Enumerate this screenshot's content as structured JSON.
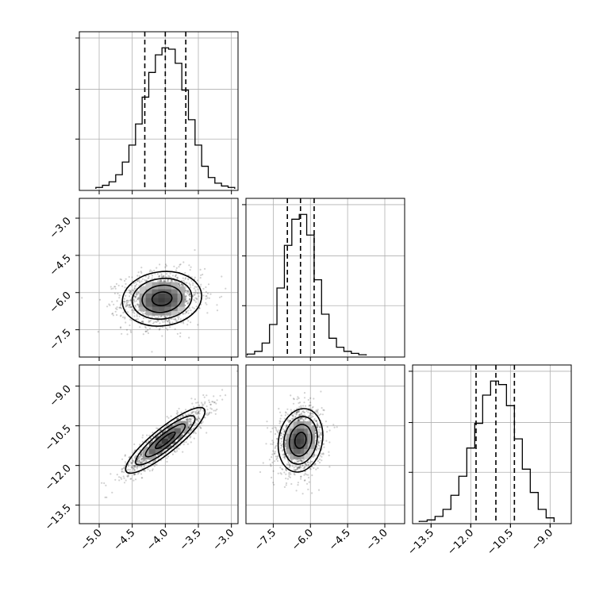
{
  "chart_data": {
    "type": "corner",
    "params": [
      {
        "range": [
          -5.3,
          -2.9
        ],
        "ticks": [
          -5.0,
          -4.5,
          -4.0,
          -3.5,
          -3.0
        ],
        "tick_labels": [
          "−5.0",
          "−4.5",
          "−4.0",
          "−3.5",
          "−3.0"
        ],
        "quantiles": [
          -4.31,
          -4.0,
          -3.69
        ],
        "hist": {
          "edges": [
            -5.05,
            -4.95,
            -4.85,
            -4.75,
            -4.65,
            -4.55,
            -4.45,
            -4.35,
            -4.25,
            -4.15,
            -4.05,
            -3.95,
            -3.85,
            -3.75,
            -3.65,
            -3.55,
            -3.45,
            -3.35,
            -3.25,
            -3.15,
            -3.05,
            -2.95
          ],
          "counts": [
            2,
            5,
            10,
            20,
            38,
            62,
            92,
            130,
            165,
            190,
            200,
            198,
            178,
            140,
            98,
            62,
            32,
            16,
            8,
            4,
            2
          ]
        }
      },
      {
        "range": [
          -8.6,
          -2.2
        ],
        "ticks": [
          -7.5,
          -6.0,
          -4.5,
          -3.0
        ],
        "tick_labels": [
          "−7.5",
          "−6.0",
          "−4.5",
          "−3.0"
        ],
        "quantiles": [
          -6.93,
          -6.4,
          -5.85
        ],
        "hist": {
          "edges": [
            -8.55,
            -8.25,
            -7.95,
            -7.65,
            -7.35,
            -7.05,
            -6.75,
            -6.45,
            -6.15,
            -5.85,
            -5.55,
            -5.25,
            -4.95,
            -4.65,
            -4.35,
            -4.05,
            -3.75
          ],
          "counts": [
            2,
            6,
            18,
            45,
            98,
            160,
            198,
            205,
            175,
            110,
            60,
            25,
            12,
            6,
            3,
            1
          ]
        }
      },
      {
        "range": [
          -14.2,
          -8.2
        ],
        "ticks": [
          -13.5,
          -12.0,
          -10.5,
          -9.0
        ],
        "tick_labels": [
          "−13.5",
          "−12.0",
          "−10.5",
          "−9.0"
        ],
        "quantiles": [
          -11.8,
          -11.05,
          -10.35
        ],
        "hist": {
          "edges": [
            -13.95,
            -13.65,
            -13.35,
            -13.05,
            -12.75,
            -12.45,
            -12.15,
            -11.85,
            -11.55,
            -11.25,
            -10.95,
            -10.65,
            -10.35,
            -10.05,
            -9.75,
            -9.45,
            -9.15,
            -8.85
          ],
          "counts": [
            1,
            3,
            8,
            18,
            38,
            65,
            105,
            140,
            180,
            200,
            195,
            165,
            118,
            75,
            42,
            18,
            6
          ]
        }
      }
    ],
    "pairs": [
      {
        "x": 0,
        "y": 1,
        "mean": [
          -4.05,
          -6.25
        ],
        "sd": [
          0.3,
          0.55
        ],
        "rho": 0.1
      },
      {
        "x": 0,
        "y": 2,
        "mean": [
          -4.0,
          -11.05
        ],
        "sd": [
          0.3,
          0.62
        ],
        "rho": 0.88
      },
      {
        "x": 1,
        "y": 2,
        "mean": [
          -6.4,
          -11.05
        ],
        "sd": [
          0.45,
          0.6
        ],
        "rho": 0.15
      }
    ],
    "grid": true,
    "colors": {
      "line": "#000000",
      "grid": "#b0b0b0",
      "scatter": "#000000"
    }
  }
}
